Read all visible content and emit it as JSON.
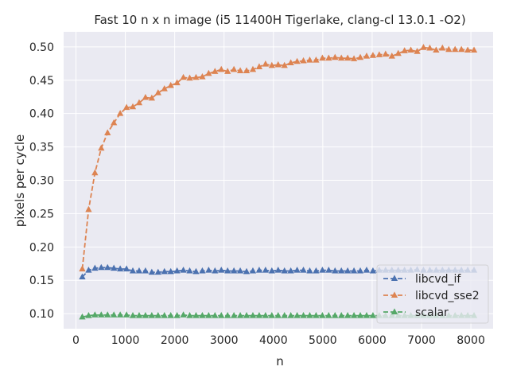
{
  "chart_data": {
    "type": "line",
    "title": "Fast 10 n x n image (i5 11400H Tigerlake, clang-cl 13.0.1 -O2)",
    "xlabel": "n",
    "ylabel": "pixels per cycle",
    "xlim": [
      -250,
      8450
    ],
    "ylim": [
      0.0775,
      0.5225
    ],
    "xticks": [
      0,
      1000,
      2000,
      3000,
      4000,
      5000,
      6000,
      7000,
      8000
    ],
    "yticks": [
      0.1,
      0.15,
      0.2,
      0.25,
      0.3,
      0.35,
      0.4,
      0.45,
      0.5
    ],
    "xtick_labels": [
      "0",
      "1000",
      "2000",
      "3000",
      "4000",
      "5000",
      "6000",
      "7000",
      "8000"
    ],
    "ytick_labels": [
      "0.10",
      "0.15",
      "0.20",
      "0.25",
      "0.30",
      "0.35",
      "0.40",
      "0.45",
      "0.50"
    ],
    "grid": true,
    "legend_position": "lower-right",
    "x": [
      128,
      256,
      384,
      512,
      640,
      768,
      896,
      1024,
      1152,
      1280,
      1408,
      1536,
      1664,
      1792,
      1920,
      2048,
      2176,
      2304,
      2432,
      2560,
      2688,
      2816,
      2944,
      3072,
      3200,
      3328,
      3456,
      3584,
      3712,
      3840,
      3968,
      4096,
      4224,
      4352,
      4480,
      4608,
      4736,
      4864,
      4992,
      5120,
      5248,
      5376,
      5504,
      5632,
      5760,
      5888,
      6016,
      6144,
      6272,
      6400,
      6528,
      6656,
      6784,
      6912,
      7040,
      7168,
      7296,
      7424,
      7552,
      7680,
      7808,
      7936,
      8064
    ],
    "series": [
      {
        "name": "libcvd_if",
        "color": "#4c72b0",
        "linestyle": "dashed",
        "marker": "triangle",
        "values": [
          0.155,
          0.165,
          0.168,
          0.169,
          0.169,
          0.168,
          0.167,
          0.167,
          0.164,
          0.164,
          0.164,
          0.162,
          0.162,
          0.163,
          0.163,
          0.164,
          0.165,
          0.164,
          0.163,
          0.164,
          0.165,
          0.164,
          0.165,
          0.164,
          0.164,
          0.164,
          0.163,
          0.164,
          0.165,
          0.165,
          0.164,
          0.165,
          0.164,
          0.164,
          0.165,
          0.165,
          0.164,
          0.164,
          0.165,
          0.165,
          0.164,
          0.164,
          0.164,
          0.164,
          0.164,
          0.165,
          0.164,
          0.165,
          0.165,
          0.165,
          0.165,
          0.165,
          0.165,
          0.166,
          0.165,
          0.165,
          0.165,
          0.165,
          0.165,
          0.165,
          0.165,
          0.165,
          0.165
        ]
      },
      {
        "name": "libcvd_sse2",
        "color": "#dd8452",
        "linestyle": "dashed",
        "marker": "triangle",
        "values": [
          0.167,
          0.256,
          0.311,
          0.348,
          0.371,
          0.386,
          0.4,
          0.409,
          0.41,
          0.416,
          0.424,
          0.423,
          0.431,
          0.437,
          0.442,
          0.446,
          0.454,
          0.453,
          0.454,
          0.455,
          0.46,
          0.463,
          0.466,
          0.463,
          0.466,
          0.464,
          0.464,
          0.466,
          0.47,
          0.474,
          0.472,
          0.473,
          0.472,
          0.476,
          0.478,
          0.479,
          0.48,
          0.48,
          0.483,
          0.483,
          0.484,
          0.483,
          0.483,
          0.482,
          0.484,
          0.486,
          0.487,
          0.488,
          0.489,
          0.486,
          0.49,
          0.494,
          0.495,
          0.493,
          0.499,
          0.498,
          0.495,
          0.498,
          0.496,
          0.496,
          0.496,
          0.495,
          0.495
        ]
      },
      {
        "name": "scalar",
        "color": "#55a868",
        "linestyle": "dashed",
        "marker": "triangle",
        "values": [
          0.095,
          0.097,
          0.098,
          0.098,
          0.098,
          0.098,
          0.098,
          0.098,
          0.097,
          0.097,
          0.097,
          0.097,
          0.097,
          0.097,
          0.097,
          0.097,
          0.098,
          0.097,
          0.097,
          0.097,
          0.097,
          0.097,
          0.097,
          0.097,
          0.097,
          0.097,
          0.097,
          0.097,
          0.097,
          0.097,
          0.097,
          0.097,
          0.097,
          0.097,
          0.097,
          0.097,
          0.097,
          0.097,
          0.097,
          0.097,
          0.097,
          0.097,
          0.097,
          0.097,
          0.097,
          0.097,
          0.097,
          0.097,
          0.097,
          0.097,
          0.097,
          0.097,
          0.097,
          0.097,
          0.097,
          0.097,
          0.097,
          0.097,
          0.097,
          0.097,
          0.097,
          0.097,
          0.097
        ]
      }
    ]
  },
  "colors": {
    "plot_background": "#eaeaf2",
    "grid": "#ffffff",
    "text": "#262626"
  }
}
